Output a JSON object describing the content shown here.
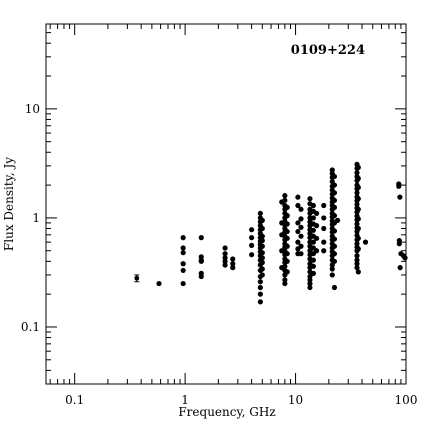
{
  "chart_data": {
    "type": "scatter",
    "title": "0109+224",
    "xlabel": "Frequency, GHz",
    "ylabel": "Flux Density, Jy",
    "xscale": "log",
    "yscale": "log",
    "xlim": [
      0.055,
      100
    ],
    "ylim": [
      0.03,
      60
    ],
    "grid": false,
    "xticks": [
      {
        "value": 0.1,
        "label": "0.1"
      },
      {
        "value": 1,
        "label": "1"
      },
      {
        "value": 10,
        "label": "10"
      },
      {
        "value": 100,
        "label": "100"
      }
    ],
    "yticks": [
      {
        "value": 0.1,
        "label": "0.1"
      },
      {
        "value": 1,
        "label": "1"
      },
      {
        "value": 10,
        "label": "10"
      }
    ],
    "error_bar_points": [
      {
        "x": 0.365,
        "y": 0.28,
        "ylow": 0.26,
        "yhigh": 0.3
      }
    ],
    "points": [
      {
        "x": 0.58,
        "y": 0.25
      },
      {
        "x": 0.96,
        "y": 0.66
      },
      {
        "x": 0.96,
        "y": 0.53
      },
      {
        "x": 0.96,
        "y": 0.48
      },
      {
        "x": 0.96,
        "y": 0.38
      },
      {
        "x": 0.96,
        "y": 0.33
      },
      {
        "x": 0.96,
        "y": 0.25
      },
      {
        "x": 1.4,
        "y": 0.66
      },
      {
        "x": 1.4,
        "y": 0.44
      },
      {
        "x": 1.4,
        "y": 0.41
      },
      {
        "x": 1.4,
        "y": 0.4
      },
      {
        "x": 1.4,
        "y": 0.31
      },
      {
        "x": 1.4,
        "y": 0.29
      },
      {
        "x": 2.3,
        "y": 0.53
      },
      {
        "x": 2.3,
        "y": 0.47
      },
      {
        "x": 2.3,
        "y": 0.43
      },
      {
        "x": 2.3,
        "y": 0.4
      },
      {
        "x": 2.3,
        "y": 0.37
      },
      {
        "x": 2.7,
        "y": 0.42
      },
      {
        "x": 2.7,
        "y": 0.38
      },
      {
        "x": 2.7,
        "y": 0.35
      },
      {
        "x": 4.0,
        "y": 0.78
      },
      {
        "x": 4.0,
        "y": 0.66
      },
      {
        "x": 4.0,
        "y": 0.56
      },
      {
        "x": 4.0,
        "y": 0.46
      },
      {
        "x": 4.8,
        "y": 1.1
      },
      {
        "x": 4.8,
        "y": 1.0
      },
      {
        "x": 4.8,
        "y": 0.92
      },
      {
        "x": 4.8,
        "y": 0.85
      },
      {
        "x": 4.8,
        "y": 0.78
      },
      {
        "x": 4.8,
        "y": 0.72
      },
      {
        "x": 4.8,
        "y": 0.66
      },
      {
        "x": 4.8,
        "y": 0.61
      },
      {
        "x": 4.8,
        "y": 0.57
      },
      {
        "x": 4.8,
        "y": 0.53
      },
      {
        "x": 4.8,
        "y": 0.49
      },
      {
        "x": 4.8,
        "y": 0.45
      },
      {
        "x": 4.8,
        "y": 0.41
      },
      {
        "x": 4.8,
        "y": 0.37
      },
      {
        "x": 4.8,
        "y": 0.33
      },
      {
        "x": 4.8,
        "y": 0.29
      },
      {
        "x": 4.8,
        "y": 0.26
      },
      {
        "x": 4.8,
        "y": 0.23
      },
      {
        "x": 4.8,
        "y": 0.2
      },
      {
        "x": 4.8,
        "y": 0.17
      },
      {
        "x": 5.0,
        "y": 0.95
      },
      {
        "x": 5.0,
        "y": 0.8
      },
      {
        "x": 5.0,
        "y": 0.68
      },
      {
        "x": 5.0,
        "y": 0.62
      },
      {
        "x": 5.0,
        "y": 0.55
      },
      {
        "x": 5.0,
        "y": 0.48
      },
      {
        "x": 5.0,
        "y": 0.43
      },
      {
        "x": 5.0,
        "y": 0.39
      },
      {
        "x": 5.0,
        "y": 0.34
      },
      {
        "x": 5.0,
        "y": 0.3
      },
      {
        "x": 7.5,
        "y": 1.4
      },
      {
        "x": 7.5,
        "y": 0.9
      },
      {
        "x": 7.5,
        "y": 0.7
      },
      {
        "x": 7.5,
        "y": 0.5
      },
      {
        "x": 7.5,
        "y": 0.35
      },
      {
        "x": 8.0,
        "y": 1.6
      },
      {
        "x": 8.0,
        "y": 1.45
      },
      {
        "x": 8.0,
        "y": 1.3
      },
      {
        "x": 8.0,
        "y": 1.2
      },
      {
        "x": 8.0,
        "y": 1.1
      },
      {
        "x": 8.0,
        "y": 1.0
      },
      {
        "x": 8.0,
        "y": 0.93
      },
      {
        "x": 8.0,
        "y": 0.86
      },
      {
        "x": 8.0,
        "y": 0.8
      },
      {
        "x": 8.0,
        "y": 0.74
      },
      {
        "x": 8.0,
        "y": 0.68
      },
      {
        "x": 8.0,
        "y": 0.63
      },
      {
        "x": 8.0,
        "y": 0.58
      },
      {
        "x": 8.0,
        "y": 0.54
      },
      {
        "x": 8.0,
        "y": 0.5
      },
      {
        "x": 8.0,
        "y": 0.46
      },
      {
        "x": 8.0,
        "y": 0.42
      },
      {
        "x": 8.0,
        "y": 0.39
      },
      {
        "x": 8.0,
        "y": 0.36
      },
      {
        "x": 8.0,
        "y": 0.33
      },
      {
        "x": 8.0,
        "y": 0.3
      },
      {
        "x": 8.0,
        "y": 0.27
      },
      {
        "x": 8.0,
        "y": 0.25
      },
      {
        "x": 8.4,
        "y": 1.25
      },
      {
        "x": 8.4,
        "y": 1.05
      },
      {
        "x": 8.4,
        "y": 0.88
      },
      {
        "x": 8.4,
        "y": 0.75
      },
      {
        "x": 8.4,
        "y": 0.65
      },
      {
        "x": 8.4,
        "y": 0.55
      },
      {
        "x": 8.4,
        "y": 0.47
      },
      {
        "x": 8.4,
        "y": 0.4
      },
      {
        "x": 8.4,
        "y": 0.32
      },
      {
        "x": 10.5,
        "y": 1.55
      },
      {
        "x": 10.5,
        "y": 1.3
      },
      {
        "x": 10.5,
        "y": 0.9
      },
      {
        "x": 10.5,
        "y": 0.75
      },
      {
        "x": 10.5,
        "y": 0.6
      },
      {
        "x": 10.5,
        "y": 0.52
      },
      {
        "x": 10.5,
        "y": 0.47
      },
      {
        "x": 11.2,
        "y": 1.2
      },
      {
        "x": 11.2,
        "y": 0.98
      },
      {
        "x": 11.2,
        "y": 0.82
      },
      {
        "x": 11.2,
        "y": 0.68
      },
      {
        "x": 11.2,
        "y": 0.55
      },
      {
        "x": 11.2,
        "y": 0.47
      },
      {
        "x": 13.5,
        "y": 1.5
      },
      {
        "x": 13.5,
        "y": 1.35
      },
      {
        "x": 13.5,
        "y": 1.2
      },
      {
        "x": 13.5,
        "y": 1.1
      },
      {
        "x": 13.5,
        "y": 1.0
      },
      {
        "x": 13.5,
        "y": 0.92
      },
      {
        "x": 13.5,
        "y": 0.85
      },
      {
        "x": 13.5,
        "y": 0.78
      },
      {
        "x": 13.5,
        "y": 0.72
      },
      {
        "x": 13.5,
        "y": 0.66
      },
      {
        "x": 13.5,
        "y": 0.6
      },
      {
        "x": 13.5,
        "y": 0.55
      },
      {
        "x": 13.5,
        "y": 0.5
      },
      {
        "x": 13.5,
        "y": 0.46
      },
      {
        "x": 13.5,
        "y": 0.42
      },
      {
        "x": 13.5,
        "y": 0.38
      },
      {
        "x": 13.5,
        "y": 0.35
      },
      {
        "x": 13.5,
        "y": 0.32
      },
      {
        "x": 13.5,
        "y": 0.29
      },
      {
        "x": 13.5,
        "y": 0.27
      },
      {
        "x": 13.5,
        "y": 0.25
      },
      {
        "x": 13.5,
        "y": 0.23
      },
      {
        "x": 14.5,
        "y": 1.3
      },
      {
        "x": 14.5,
        "y": 1.15
      },
      {
        "x": 14.5,
        "y": 1.0
      },
      {
        "x": 14.5,
        "y": 0.88
      },
      {
        "x": 14.5,
        "y": 0.77
      },
      {
        "x": 14.5,
        "y": 0.68
      },
      {
        "x": 14.5,
        "y": 0.6
      },
      {
        "x": 14.5,
        "y": 0.53
      },
      {
        "x": 14.5,
        "y": 0.47
      },
      {
        "x": 14.5,
        "y": 0.41
      },
      {
        "x": 14.5,
        "y": 0.36
      },
      {
        "x": 14.5,
        "y": 0.31
      },
      {
        "x": 15.5,
        "y": 1.1
      },
      {
        "x": 15.5,
        "y": 0.85
      },
      {
        "x": 15.5,
        "y": 0.65
      },
      {
        "x": 15.5,
        "y": 0.5
      },
      {
        "x": 18.0,
        "y": 1.3
      },
      {
        "x": 18.0,
        "y": 1.0
      },
      {
        "x": 18.0,
        "y": 0.8
      },
      {
        "x": 18.0,
        "y": 0.6
      },
      {
        "x": 18.0,
        "y": 0.5
      },
      {
        "x": 21.5,
        "y": 2.75
      },
      {
        "x": 21.5,
        "y": 2.55
      },
      {
        "x": 21.5,
        "y": 2.35
      },
      {
        "x": 21.5,
        "y": 2.15
      },
      {
        "x": 21.5,
        "y": 1.95
      },
      {
        "x": 21.5,
        "y": 1.8
      },
      {
        "x": 21.5,
        "y": 1.65
      },
      {
        "x": 21.5,
        "y": 1.52
      },
      {
        "x": 21.5,
        "y": 1.4
      },
      {
        "x": 21.5,
        "y": 1.3
      },
      {
        "x": 21.5,
        "y": 1.2
      },
      {
        "x": 21.5,
        "y": 1.1
      },
      {
        "x": 21.5,
        "y": 1.02
      },
      {
        "x": 21.5,
        "y": 0.94
      },
      {
        "x": 21.5,
        "y": 0.87
      },
      {
        "x": 21.5,
        "y": 0.8
      },
      {
        "x": 21.5,
        "y": 0.74
      },
      {
        "x": 21.5,
        "y": 0.68
      },
      {
        "x": 21.5,
        "y": 0.63
      },
      {
        "x": 21.5,
        "y": 0.58
      },
      {
        "x": 21.5,
        "y": 0.53
      },
      {
        "x": 21.5,
        "y": 0.49
      },
      {
        "x": 21.5,
        "y": 0.45
      },
      {
        "x": 21.5,
        "y": 0.41
      },
      {
        "x": 21.5,
        "y": 0.37
      },
      {
        "x": 21.5,
        "y": 0.34
      },
      {
        "x": 21.5,
        "y": 0.3
      },
      {
        "x": 22.5,
        "y": 2.4
      },
      {
        "x": 22.5,
        "y": 2.0
      },
      {
        "x": 22.5,
        "y": 1.7
      },
      {
        "x": 22.5,
        "y": 1.45
      },
      {
        "x": 22.5,
        "y": 1.25
      },
      {
        "x": 22.5,
        "y": 1.05
      },
      {
        "x": 22.5,
        "y": 0.9
      },
      {
        "x": 22.5,
        "y": 0.76
      },
      {
        "x": 22.5,
        "y": 0.64
      },
      {
        "x": 22.5,
        "y": 0.55
      },
      {
        "x": 22.5,
        "y": 0.47
      },
      {
        "x": 22.5,
        "y": 0.4
      },
      {
        "x": 22.5,
        "y": 0.23
      },
      {
        "x": 24.0,
        "y": 0.95
      },
      {
        "x": 36.0,
        "y": 3.1
      },
      {
        "x": 36.0,
        "y": 2.85
      },
      {
        "x": 36.0,
        "y": 2.6
      },
      {
        "x": 36.0,
        "y": 2.4
      },
      {
        "x": 36.0,
        "y": 2.2
      },
      {
        "x": 36.0,
        "y": 2.0
      },
      {
        "x": 36.0,
        "y": 1.85
      },
      {
        "x": 36.0,
        "y": 1.7
      },
      {
        "x": 36.0,
        "y": 1.56
      },
      {
        "x": 36.0,
        "y": 1.44
      },
      {
        "x": 36.0,
        "y": 1.33
      },
      {
        "x": 36.0,
        "y": 1.23
      },
      {
        "x": 36.0,
        "y": 1.13
      },
      {
        "x": 36.0,
        "y": 1.04
      },
      {
        "x": 36.0,
        "y": 0.96
      },
      {
        "x": 36.0,
        "y": 0.88
      },
      {
        "x": 36.0,
        "y": 0.81
      },
      {
        "x": 36.0,
        "y": 0.75
      },
      {
        "x": 36.0,
        "y": 0.69
      },
      {
        "x": 36.0,
        "y": 0.63
      },
      {
        "x": 36.0,
        "y": 0.58
      },
      {
        "x": 36.0,
        "y": 0.54
      },
      {
        "x": 36.0,
        "y": 0.5
      },
      {
        "x": 36.0,
        "y": 0.45
      },
      {
        "x": 36.0,
        "y": 0.41
      },
      {
        "x": 36.0,
        "y": 0.38
      },
      {
        "x": 36.0,
        "y": 0.35
      },
      {
        "x": 37.0,
        "y": 2.9
      },
      {
        "x": 37.0,
        "y": 2.3
      },
      {
        "x": 37.0,
        "y": 1.9
      },
      {
        "x": 37.0,
        "y": 1.5
      },
      {
        "x": 37.0,
        "y": 1.2
      },
      {
        "x": 37.0,
        "y": 0.98
      },
      {
        "x": 37.0,
        "y": 0.8
      },
      {
        "x": 37.0,
        "y": 0.65
      },
      {
        "x": 37.0,
        "y": 0.52
      },
      {
        "x": 37.0,
        "y": 0.32
      },
      {
        "x": 43.0,
        "y": 0.6
      },
      {
        "x": 86.0,
        "y": 2.05
      },
      {
        "x": 86.0,
        "y": 1.95
      },
      {
        "x": 88.0,
        "y": 1.55
      },
      {
        "x": 87.0,
        "y": 0.62
      },
      {
        "x": 87.0,
        "y": 0.58
      },
      {
        "x": 90.0,
        "y": 0.47
      },
      {
        "x": 88.5,
        "y": 0.35
      },
      {
        "x": 95.0,
        "y": 0.45
      },
      {
        "x": 98.0,
        "y": 0.43
      }
    ]
  }
}
